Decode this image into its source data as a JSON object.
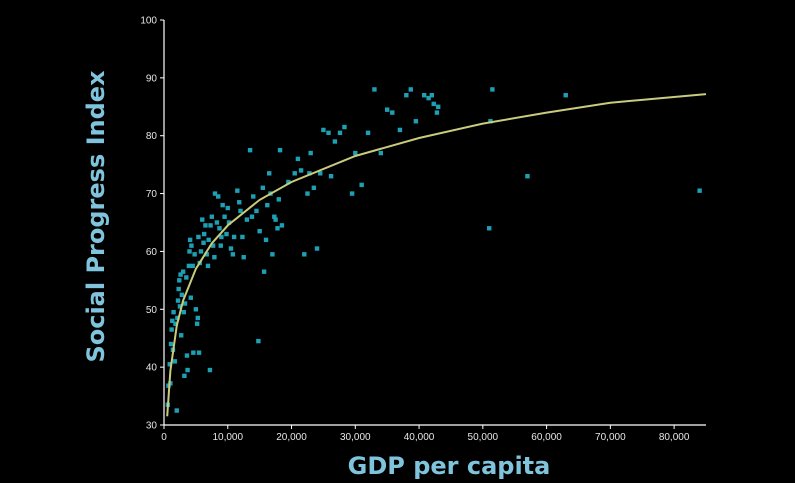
{
  "chart_data": {
    "type": "scatter",
    "title": "",
    "xlabel": "GDP per capita",
    "ylabel": "Social Progress Index",
    "xlim": [
      0,
      85000
    ],
    "ylim": [
      30,
      100
    ],
    "x_ticks": [
      0,
      10000,
      20000,
      30000,
      40000,
      50000,
      60000,
      70000,
      80000
    ],
    "x_tick_labels": [
      "0",
      "10,000",
      "20,000",
      "30,000",
      "40,000",
      "50,000",
      "60,000",
      "70,000",
      "80,000"
    ],
    "y_ticks": [
      30,
      40,
      50,
      60,
      70,
      80,
      90,
      100
    ],
    "y_tick_labels": [
      "30",
      "40",
      "50",
      "60",
      "70",
      "80",
      "90",
      "100"
    ],
    "grid": false,
    "point_color": "#1ea0b4",
    "trend_color": "#c8cc7c",
    "axis_color": "#ffffff",
    "title_color": "#7fc4dc",
    "trendline": {
      "type": "logarithmic",
      "points": [
        [
          500,
          31.5
        ],
        [
          1000,
          39.4
        ],
        [
          2000,
          47.2
        ],
        [
          3000,
          51.5
        ],
        [
          5000,
          57.0
        ],
        [
          7500,
          61.4
        ],
        [
          10000,
          64.5
        ],
        [
          15000,
          68.9
        ],
        [
          20000,
          72.0
        ],
        [
          30000,
          76.5
        ],
        [
          40000,
          79.6
        ],
        [
          50000,
          82.1
        ],
        [
          60000,
          84.0
        ],
        [
          70000,
          85.7
        ],
        [
          85000,
          87.2
        ]
      ]
    },
    "series": [
      {
        "points": [
          [
            600,
            33.5
          ],
          [
            700,
            36.8
          ],
          [
            900,
            40.5
          ],
          [
            1000,
            37.2
          ],
          [
            1100,
            44.0
          ],
          [
            1200,
            46.5
          ],
          [
            1300,
            48.0
          ],
          [
            1400,
            43.0
          ],
          [
            1500,
            49.5
          ],
          [
            1700,
            41.0
          ],
          [
            1800,
            47.5
          ],
          [
            2000,
            32.5
          ],
          [
            2100,
            48.5
          ],
          [
            2200,
            51.5
          ],
          [
            2300,
            53.5
          ],
          [
            2400,
            55.0
          ],
          [
            2500,
            50.5
          ],
          [
            2600,
            56.0
          ],
          [
            2700,
            45.5
          ],
          [
            2800,
            52.5
          ],
          [
            3000,
            56.5
          ],
          [
            3100,
            49.5
          ],
          [
            3200,
            38.5
          ],
          [
            3300,
            51.0
          ],
          [
            3500,
            55.5
          ],
          [
            3600,
            42.0
          ],
          [
            3700,
            39.5
          ],
          [
            3900,
            57.5
          ],
          [
            4000,
            60.0
          ],
          [
            4100,
            62.0
          ],
          [
            4200,
            52.0
          ],
          [
            4300,
            61.0
          ],
          [
            4500,
            57.5
          ],
          [
            4600,
            42.5
          ],
          [
            4800,
            59.5
          ],
          [
            5000,
            50.0
          ],
          [
            5200,
            47.5
          ],
          [
            5300,
            48.5
          ],
          [
            5400,
            62.5
          ],
          [
            5500,
            42.5
          ],
          [
            5600,
            58.0
          ],
          [
            5800,
            60.0
          ],
          [
            6000,
            65.5
          ],
          [
            6200,
            61.5
          ],
          [
            6300,
            63.0
          ],
          [
            6500,
            64.5
          ],
          [
            6700,
            59.5
          ],
          [
            6900,
            57.5
          ],
          [
            7000,
            62.0
          ],
          [
            7200,
            39.5
          ],
          [
            7300,
            64.5
          ],
          [
            7500,
            66.0
          ],
          [
            7700,
            61.0
          ],
          [
            7900,
            59.0
          ],
          [
            8000,
            70.0
          ],
          [
            8300,
            65.0
          ],
          [
            8500,
            69.5
          ],
          [
            8700,
            64.0
          ],
          [
            8900,
            61.0
          ],
          [
            9000,
            62.5
          ],
          [
            9200,
            68.0
          ],
          [
            9500,
            66.0
          ],
          [
            9800,
            63.0
          ],
          [
            10000,
            67.5
          ],
          [
            10200,
            65.0
          ],
          [
            10500,
            60.5
          ],
          [
            10800,
            59.5
          ],
          [
            11000,
            62.5
          ],
          [
            11500,
            70.5
          ],
          [
            11800,
            68.5
          ],
          [
            12000,
            67.0
          ],
          [
            12300,
            62.5
          ],
          [
            12500,
            59.0
          ],
          [
            13000,
            65.5
          ],
          [
            13500,
            77.5
          ],
          [
            13800,
            66.0
          ],
          [
            14000,
            69.5
          ],
          [
            14500,
            67.0
          ],
          [
            14800,
            44.5
          ],
          [
            15000,
            63.5
          ],
          [
            15500,
            71.0
          ],
          [
            15700,
            56.5
          ],
          [
            16000,
            62.0
          ],
          [
            16200,
            68.0
          ],
          [
            16500,
            73.5
          ],
          [
            16700,
            70.0
          ],
          [
            17000,
            59.5
          ],
          [
            17300,
            66.0
          ],
          [
            17500,
            65.5
          ],
          [
            17800,
            64.0
          ],
          [
            18000,
            69.0
          ],
          [
            18200,
            77.5
          ],
          [
            18500,
            64.5
          ],
          [
            19500,
            72.0
          ],
          [
            20500,
            73.5
          ],
          [
            21000,
            76.0
          ],
          [
            21500,
            74.0
          ],
          [
            22000,
            59.5
          ],
          [
            22500,
            70.0
          ],
          [
            22800,
            73.5
          ],
          [
            23000,
            77.0
          ],
          [
            23500,
            71.0
          ],
          [
            24000,
            60.5
          ],
          [
            24500,
            73.5
          ],
          [
            25000,
            81.0
          ],
          [
            25800,
            80.5
          ],
          [
            26200,
            73.0
          ],
          [
            26800,
            79.0
          ],
          [
            27600,
            80.5
          ],
          [
            28300,
            81.5
          ],
          [
            29500,
            70.0
          ],
          [
            30000,
            77.0
          ],
          [
            31000,
            71.5
          ],
          [
            32000,
            80.5
          ],
          [
            33000,
            88.0
          ],
          [
            34000,
            77.0
          ],
          [
            35000,
            84.5
          ],
          [
            35800,
            84.0
          ],
          [
            37000,
            81.0
          ],
          [
            38000,
            87.0
          ],
          [
            38700,
            88.0
          ],
          [
            39500,
            82.5
          ],
          [
            40800,
            87.0
          ],
          [
            41500,
            86.5
          ],
          [
            42000,
            87.0
          ],
          [
            42300,
            85.5
          ],
          [
            42800,
            84.0
          ],
          [
            43000,
            85.0
          ],
          [
            51000,
            64.0
          ],
          [
            51200,
            82.5
          ],
          [
            51500,
            88.0
          ],
          [
            57000,
            73.0
          ],
          [
            63000,
            87.0
          ],
          [
            84000,
            70.5
          ]
        ]
      }
    ]
  }
}
